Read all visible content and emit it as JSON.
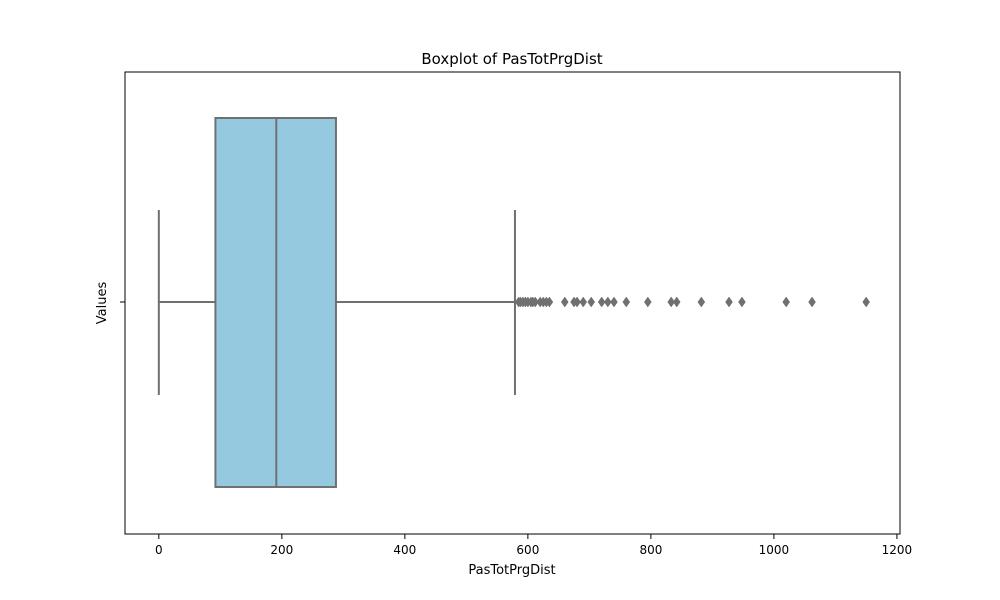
{
  "chart_data": {
    "type": "boxplot",
    "title": "Boxplot of PasTotPrgDist",
    "xlabel": "PasTotPrgDist",
    "ylabel": "Values",
    "xlim": [
      -55,
      1205
    ],
    "xticks": [
      0,
      200,
      400,
      600,
      800,
      1000,
      1200
    ],
    "grid": false,
    "box": {
      "whisker_low": 0,
      "q1": 92,
      "median": 191,
      "q3": 288,
      "whisker_high": 579
    },
    "outliers": [
      585,
      588,
      592,
      596,
      600,
      605,
      608,
      612,
      620,
      625,
      630,
      635,
      660,
      675,
      680,
      690,
      703,
      720,
      730,
      740,
      760,
      795,
      833,
      842,
      882,
      927,
      948,
      1020,
      1062,
      1150
    ],
    "colors": {
      "box_fill": "#94c9e0",
      "line": "#707070",
      "outlier": "#707070"
    }
  }
}
